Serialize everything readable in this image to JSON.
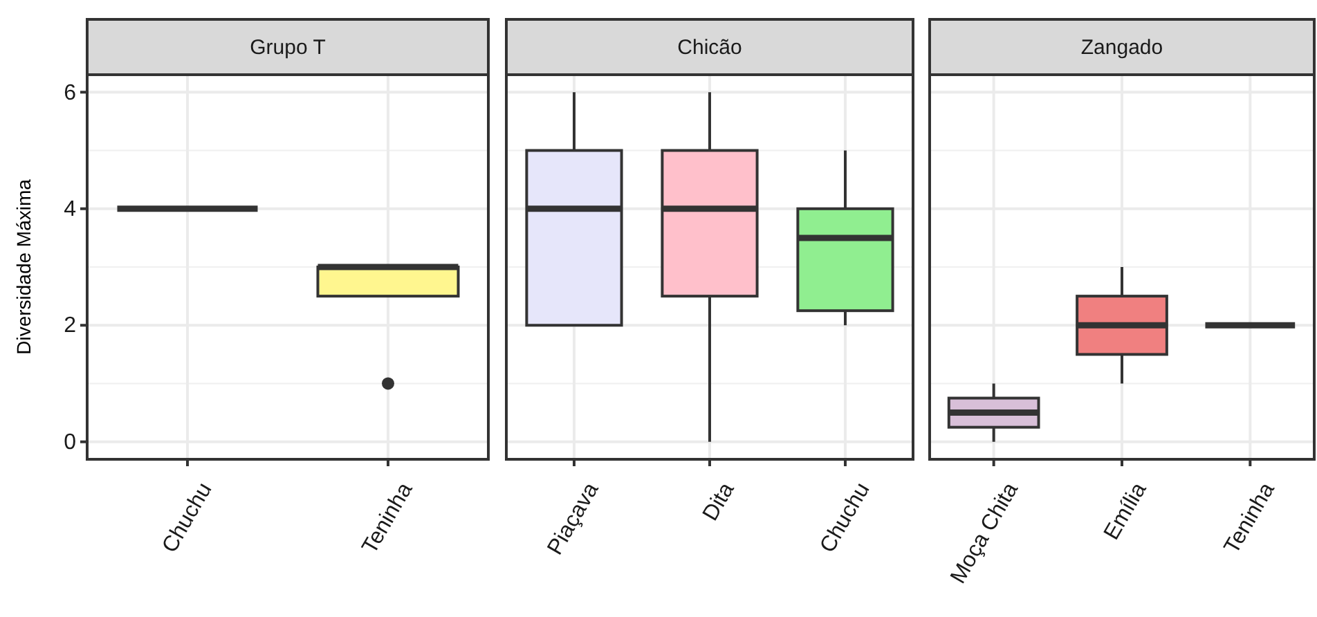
{
  "chart_data": [
    {
      "type": "box",
      "title": "Grupo T",
      "ylabel": "Diversidade Máxima",
      "categories": [
        "Chuchu",
        "Teninha"
      ],
      "colors": [
        "#333333",
        "#fff68f"
      ],
      "boxes": [
        {
          "low": 4,
          "q1": 4,
          "median": 4,
          "q3": 4,
          "high": 4
        },
        {
          "low": 2.5,
          "q1": 2.5,
          "median": 3,
          "q3": 3,
          "high": 3,
          "outliers": [
            1
          ]
        }
      ],
      "ylim": [
        -0.3,
        6.3
      ],
      "yticks": [
        0,
        2,
        4,
        6
      ],
      "grid": true
    },
    {
      "type": "box",
      "title": "Chicão",
      "categories": [
        "Piaçava",
        "Dita",
        "Chuchu"
      ],
      "colors": [
        "#e6e6fa",
        "#ffc0cb",
        "#90ee90"
      ],
      "boxes": [
        {
          "low": 2,
          "q1": 2,
          "median": 4,
          "q3": 5,
          "high": 6
        },
        {
          "low": 0,
          "q1": 2.5,
          "median": 4,
          "q3": 5,
          "high": 6
        },
        {
          "low": 2,
          "q1": 2.25,
          "median": 3.5,
          "q3": 4,
          "high": 5
        }
      ],
      "ylim": [
        -0.3,
        6.3
      ],
      "yticks": [
        0,
        2,
        4,
        6
      ],
      "grid": true,
      "tick_labels": "x"
    },
    {
      "type": "box",
      "title": "Zangado",
      "categories": [
        "Moça Chita",
        "Emília",
        "Teninha"
      ],
      "colors": [
        "#d8bfd8",
        "#f08080",
        "#333333"
      ],
      "boxes": [
        {
          "low": 0,
          "q1": 0.25,
          "median": 0.5,
          "q3": 0.75,
          "high": 1
        },
        {
          "low": 1,
          "q1": 1.5,
          "median": 2,
          "q3": 2.5,
          "high": 3
        },
        {
          "low": 2,
          "q1": 2,
          "median": 2,
          "q3": 2,
          "high": 2
        }
      ],
      "ylim": [
        -0.3,
        6.3
      ],
      "yticks": [
        0,
        2,
        4,
        6
      ],
      "grid": true,
      "tick_labels": "x"
    }
  ]
}
